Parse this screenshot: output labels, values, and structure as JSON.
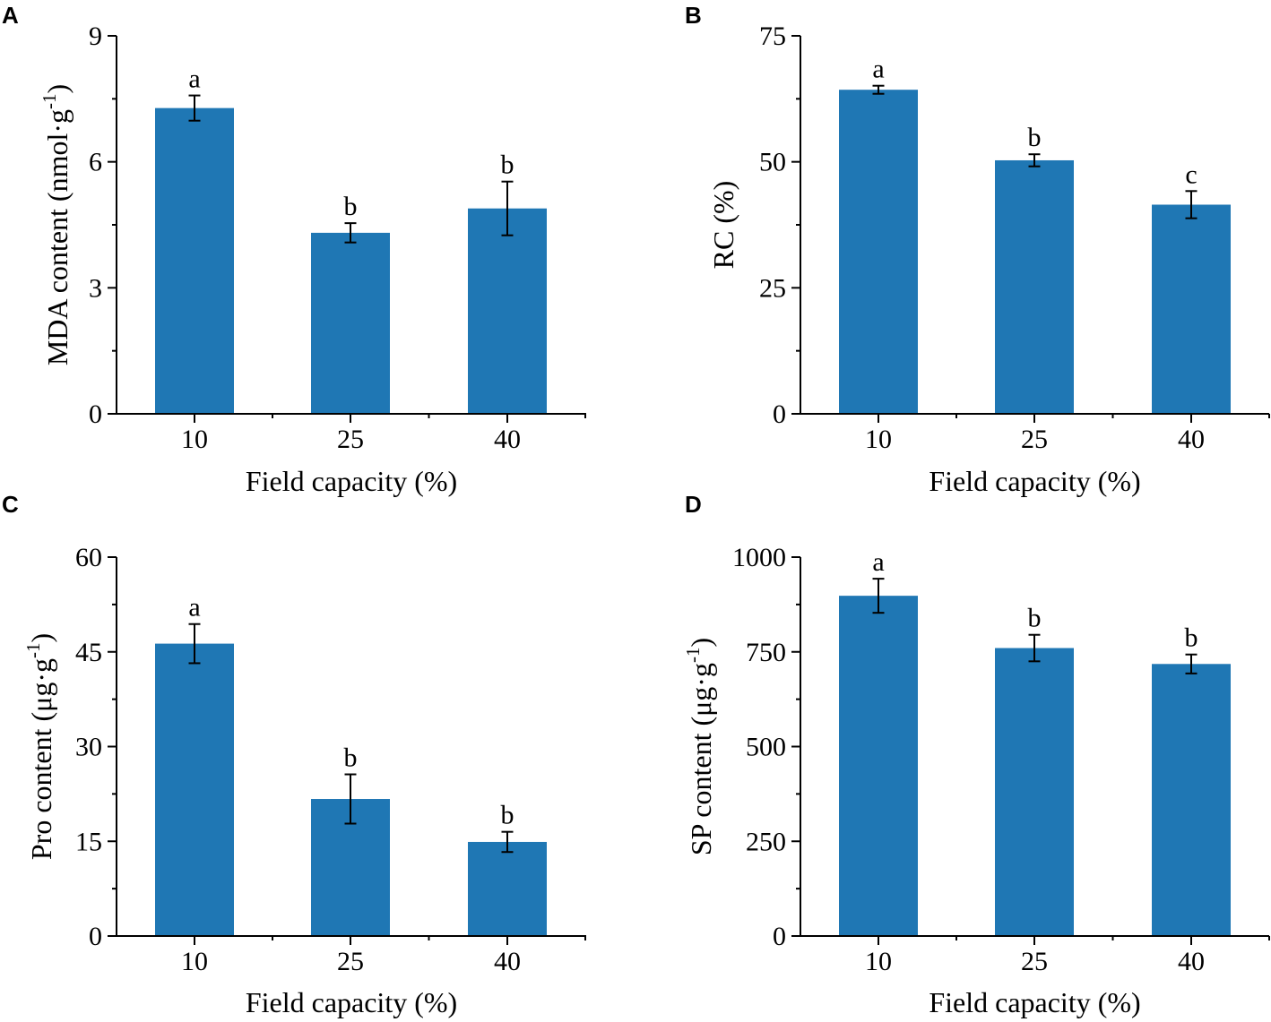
{
  "bar_color": "#1f77b4",
  "chart_data": [
    {
      "panel": "A",
      "type": "bar",
      "categories": [
        "10",
        "25",
        "40"
      ],
      "values": [
        7.28,
        4.31,
        4.89
      ],
      "errors": [
        0.3,
        0.23,
        0.64
      ],
      "significance": [
        "a",
        "b",
        "b"
      ],
      "xlabel": "Field capacity (%)",
      "ylabel_main": "MDA content (nmol·g",
      "ylabel_sup": "-1",
      "ylabel_tail": ")",
      "ylim": [
        0,
        9
      ],
      "yticks": [
        0,
        3,
        6,
        9
      ],
      "ytick_labels": [
        "0",
        "3",
        "6",
        "9"
      ]
    },
    {
      "panel": "B",
      "type": "bar",
      "categories": [
        "10",
        "25",
        "40"
      ],
      "values": [
        64.3,
        50.3,
        41.5
      ],
      "errors": [
        0.8,
        1.2,
        2.7
      ],
      "significance": [
        "a",
        "b",
        "c"
      ],
      "xlabel": "Field capacity (%)",
      "ylabel_main": "RC (%)",
      "ylabel_sup": "",
      "ylabel_tail": "",
      "ylim": [
        0,
        75
      ],
      "yticks": [
        0,
        25,
        50,
        75
      ],
      "ytick_labels": [
        "0",
        "25",
        "50",
        "75"
      ]
    },
    {
      "panel": "C",
      "type": "bar",
      "categories": [
        "10",
        "25",
        "40"
      ],
      "values": [
        46.3,
        21.7,
        14.9
      ],
      "errors": [
        3.1,
        3.9,
        1.6
      ],
      "significance": [
        "a",
        "b",
        "b"
      ],
      "xlabel": "Field capacity (%)",
      "ylabel_main": "Pro content (μg·g",
      "ylabel_sup": "-1",
      "ylabel_tail": ")",
      "ylim": [
        0,
        60
      ],
      "yticks": [
        0,
        15,
        30,
        45,
        60
      ],
      "ytick_labels": [
        "0",
        "15",
        "30",
        "45",
        "60"
      ]
    },
    {
      "panel": "D",
      "type": "bar",
      "categories": [
        "10",
        "25",
        "40"
      ],
      "values": [
        898,
        760,
        718
      ],
      "errors": [
        45,
        35,
        25
      ],
      "significance": [
        "a",
        "b",
        "b"
      ],
      "xlabel": "Field capacity (%)",
      "ylabel_main": "SP content (μg·g",
      "ylabel_sup": "-1",
      "ylabel_tail": ")",
      "ylim": [
        0,
        1000
      ],
      "yticks": [
        0,
        250,
        500,
        750,
        1000
      ],
      "ytick_labels": [
        "0",
        "250",
        "500",
        "750",
        "1000"
      ]
    }
  ]
}
